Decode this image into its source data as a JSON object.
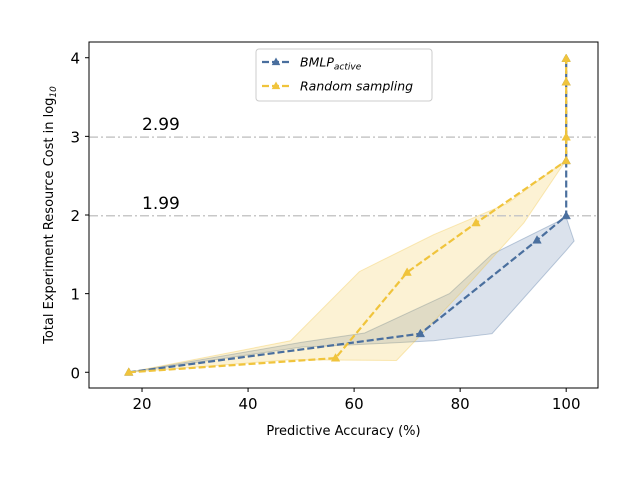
{
  "chart_data": {
    "type": "line",
    "xlabel": "Predictive Accuracy (%)",
    "ylabel": "Total Experiment Resource Cost in log",
    "ylabel_sub": "10",
    "xlim": [
      10,
      106
    ],
    "ylim": [
      -0.2,
      4.2
    ],
    "xticks": [
      20,
      40,
      60,
      80,
      100
    ],
    "yticks": [
      0,
      1,
      2,
      3,
      4
    ],
    "grid": false,
    "legend_position": "top-center",
    "reference_lines": [
      {
        "y": 2.99,
        "label": "2.99",
        "label_x": 20
      },
      {
        "y": 1.99,
        "label": "1.99",
        "label_x": 20
      }
    ],
    "series": [
      {
        "name": "BMLP",
        "name_sub": "active",
        "color": "#4a6f9e",
        "marker": "triangle",
        "linestyle": "dashed",
        "x": [
          17.5,
          72.5,
          94.5,
          100,
          100,
          100,
          100
        ],
        "y": [
          0,
          0.49,
          1.68,
          1.99,
          2.69,
          3.69,
          3.99
        ],
        "band_upper": [
          [
            17.5,
            0
          ],
          [
            50,
            0.38
          ],
          [
            62,
            0.5
          ],
          [
            78,
            1.0
          ],
          [
            86,
            1.5
          ],
          [
            100,
            1.97
          ],
          [
            101.5,
            1.67
          ]
        ],
        "band_lower": [
          [
            17.5,
            0
          ],
          [
            50,
            0.32
          ],
          [
            60,
            0.35
          ],
          [
            75,
            0.4
          ],
          [
            86,
            0.49
          ],
          [
            100,
            1.55
          ],
          [
            101.5,
            1.67
          ]
        ]
      },
      {
        "name": "Random sampling",
        "color": "#f0c43c",
        "marker": "triangle",
        "linestyle": "dashed",
        "x": [
          17.5,
          56.5,
          70,
          83,
          100,
          100,
          100,
          100
        ],
        "y": [
          0,
          0.18,
          1.27,
          1.9,
          2.69,
          2.99,
          3.69,
          3.99
        ],
        "band_upper": [
          [
            17.5,
            0
          ],
          [
            48,
            0.4
          ],
          [
            61,
            1.28
          ],
          [
            75,
            1.75
          ],
          [
            89,
            2.15
          ],
          [
            100,
            2.7
          ]
        ],
        "band_lower": [
          [
            17.5,
            0
          ],
          [
            48,
            0.16
          ],
          [
            68,
            0.15
          ],
          [
            80,
            1.0
          ],
          [
            92,
            1.9
          ],
          [
            100,
            2.7
          ]
        ]
      }
    ]
  }
}
